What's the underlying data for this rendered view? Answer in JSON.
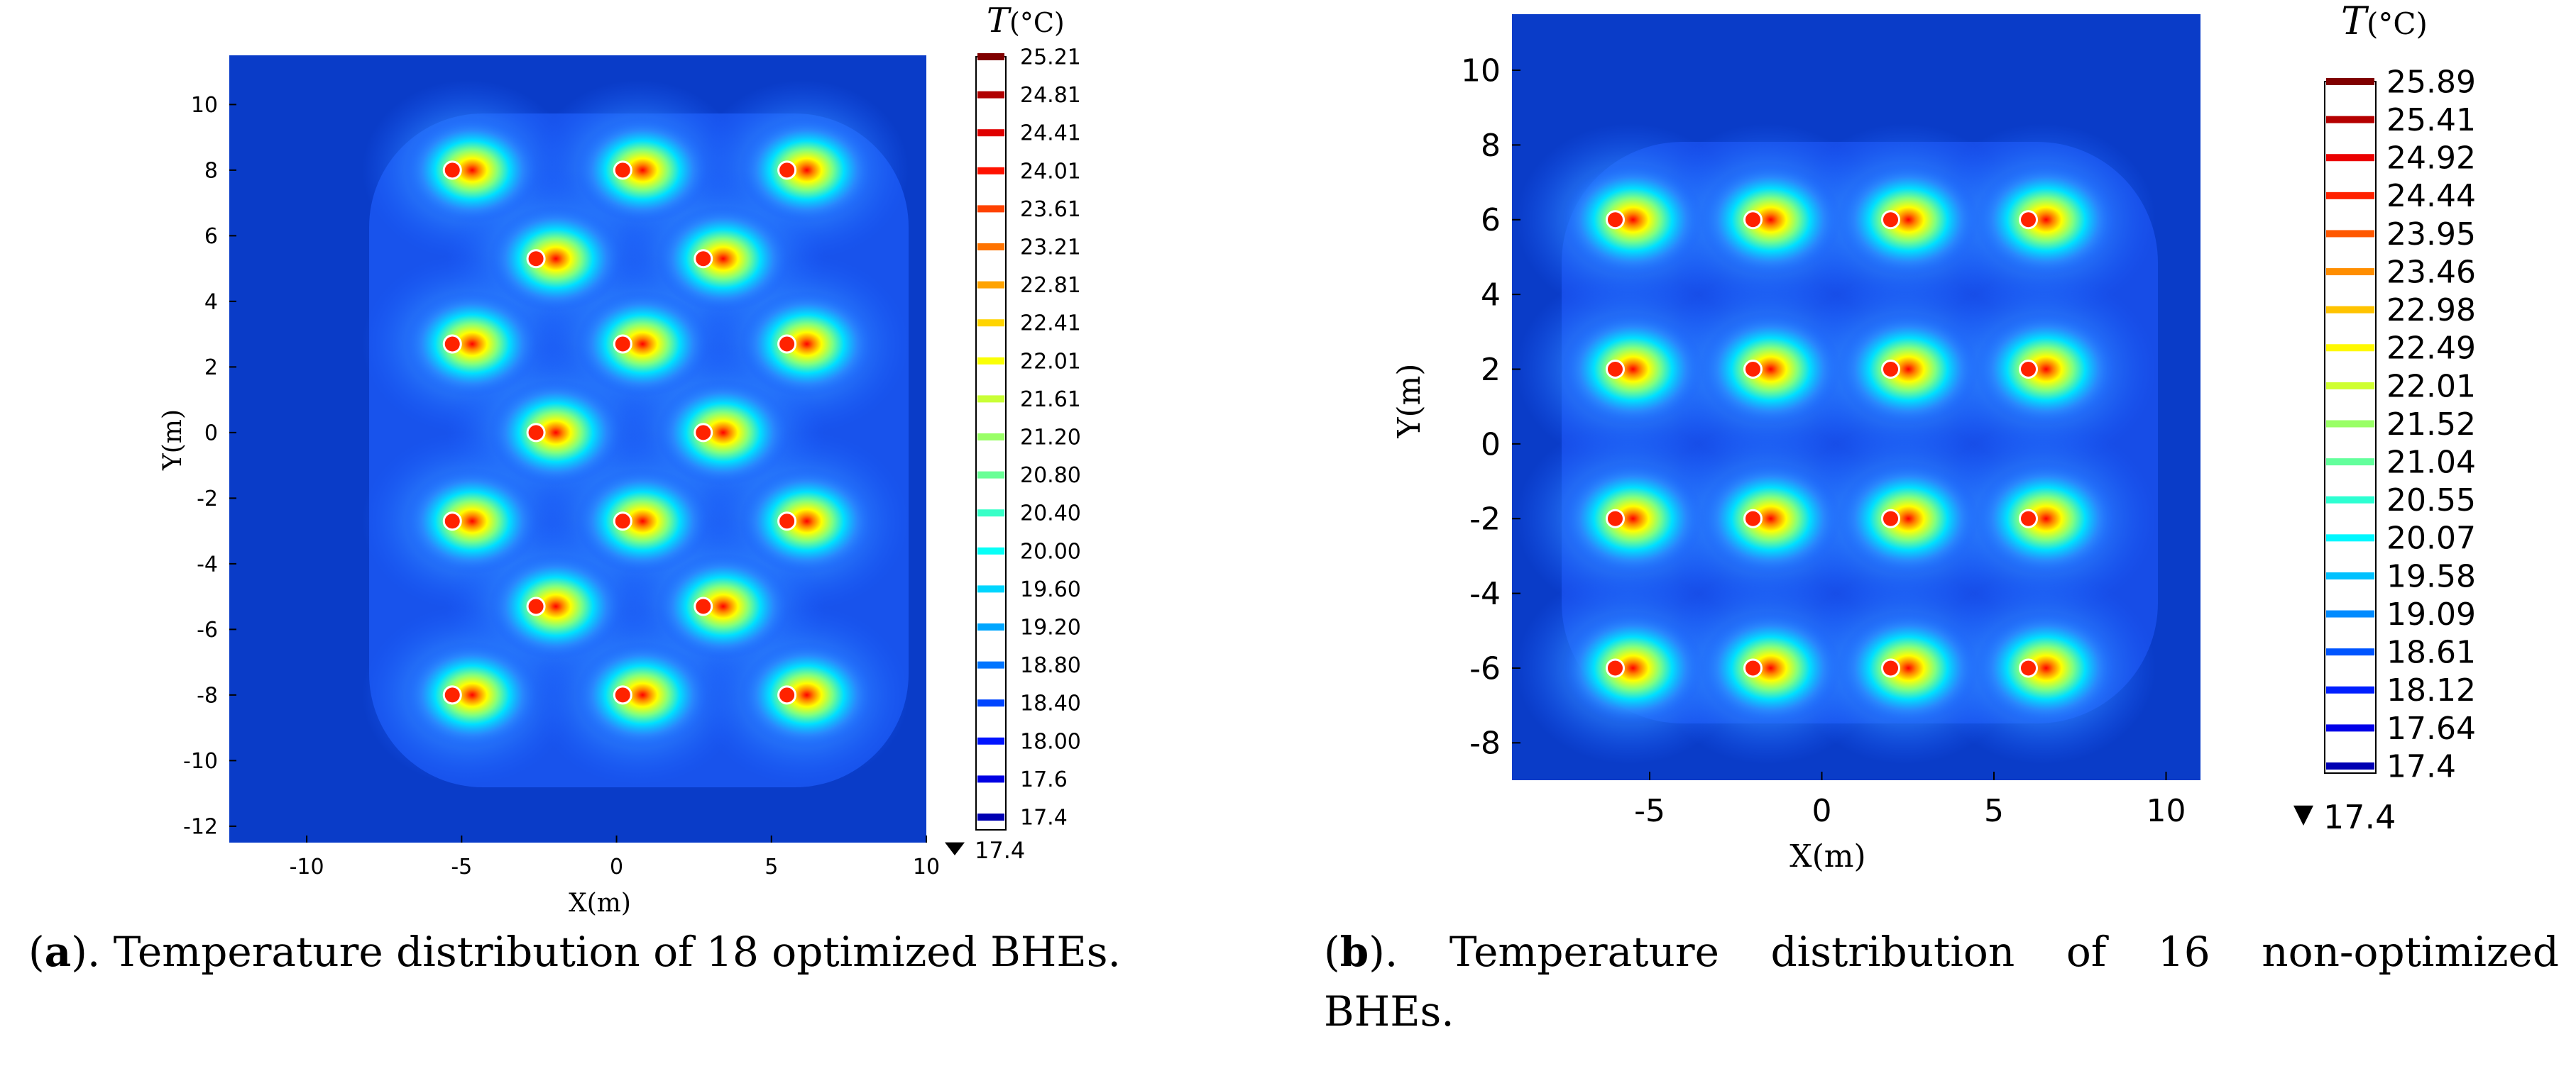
{
  "chart_data": [
    {
      "type": "heatmap",
      "panel_label": "a",
      "caption": "). Temperature distribution of 18 optimized BHEs.",
      "xlabel": "X(m)",
      "ylabel": "Y(m)",
      "xlim": [
        -12.5,
        10
      ],
      "ylim": [
        -12.5,
        11.5
      ],
      "xticks": [
        -10,
        -5,
        0,
        5,
        10
      ],
      "yticks": [
        10,
        8,
        6,
        4,
        2,
        0,
        -2,
        -4,
        -6,
        -8,
        -10,
        -12
      ],
      "colorbar_title": "T(°C)",
      "colorbar_title_italic": "T",
      "colorbar_title_unit": "(°C)",
      "colorbar_levels": [
        "25.21",
        "24.81",
        "24.41",
        "24.01",
        "23.61",
        "23.21",
        "22.81",
        "22.41",
        "22.01",
        "21.61",
        "21.20",
        "20.80",
        "20.40",
        "20.00",
        "19.60",
        "19.20",
        "18.80",
        "18.40",
        "18.00",
        "17.6",
        "17.4"
      ],
      "colorbar_min_label": "17.4",
      "background_temperature": 17.4,
      "bhe_count": 18,
      "bhe_positions": [
        [
          -5.3,
          8
        ],
        [
          0.2,
          8
        ],
        [
          5.5,
          8
        ],
        [
          -2.6,
          5.3
        ],
        [
          2.8,
          5.3
        ],
        [
          -5.3,
          2.7
        ],
        [
          0.2,
          2.7
        ],
        [
          5.5,
          2.7
        ],
        [
          -2.6,
          0
        ],
        [
          2.8,
          0
        ],
        [
          -5.3,
          -2.7
        ],
        [
          0.2,
          -2.7
        ],
        [
          5.5,
          -2.7
        ],
        [
          -2.6,
          -5.3
        ],
        [
          2.8,
          -5.3
        ],
        [
          -5.3,
          -8
        ],
        [
          0.2,
          -8
        ],
        [
          5.5,
          -8
        ]
      ]
    },
    {
      "type": "heatmap",
      "panel_label": "b",
      "caption_line1": "). Temperature distribution of 16 non-optimized",
      "caption_line2": "BHEs.",
      "xlabel": "X(m)",
      "ylabel": "Y(m)",
      "xlim": [
        -9,
        11
      ],
      "ylim": [
        -9,
        11.5
      ],
      "xticks": [
        -5,
        0,
        5,
        10
      ],
      "yticks": [
        10,
        8,
        6,
        4,
        2,
        0,
        -2,
        -4,
        -6,
        -8
      ],
      "colorbar_title": "T(°C)",
      "colorbar_title_italic": "T",
      "colorbar_title_unit": "(°C)",
      "colorbar_levels": [
        "25.89",
        "25.41",
        "24.92",
        "24.44",
        "23.95",
        "23.46",
        "22.98",
        "22.49",
        "22.01",
        "21.52",
        "21.04",
        "20.55",
        "20.07",
        "19.58",
        "19.09",
        "18.61",
        "18.12",
        "17.64",
        "17.4"
      ],
      "colorbar_min_label": "17.4",
      "background_temperature": 17.4,
      "bhe_count": 16,
      "bhe_positions": [
        [
          -6,
          6
        ],
        [
          -2,
          6
        ],
        [
          2,
          6
        ],
        [
          6,
          6
        ],
        [
          -6,
          2
        ],
        [
          -2,
          2
        ],
        [
          2,
          2
        ],
        [
          6,
          2
        ],
        [
          -6,
          -2
        ],
        [
          -2,
          -2
        ],
        [
          2,
          -2
        ],
        [
          6,
          -2
        ],
        [
          -6,
          -6
        ],
        [
          -2,
          -6
        ],
        [
          2,
          -6
        ],
        [
          6,
          -6
        ]
      ]
    }
  ],
  "palette": {
    "background": "#0a3cc8",
    "jet_stops": [
      "#00007f",
      "#0000ff",
      "#007fff",
      "#00ffff",
      "#7fff7f",
      "#ffff00",
      "#ff7f00",
      "#ff0000",
      "#7f0000"
    ]
  }
}
